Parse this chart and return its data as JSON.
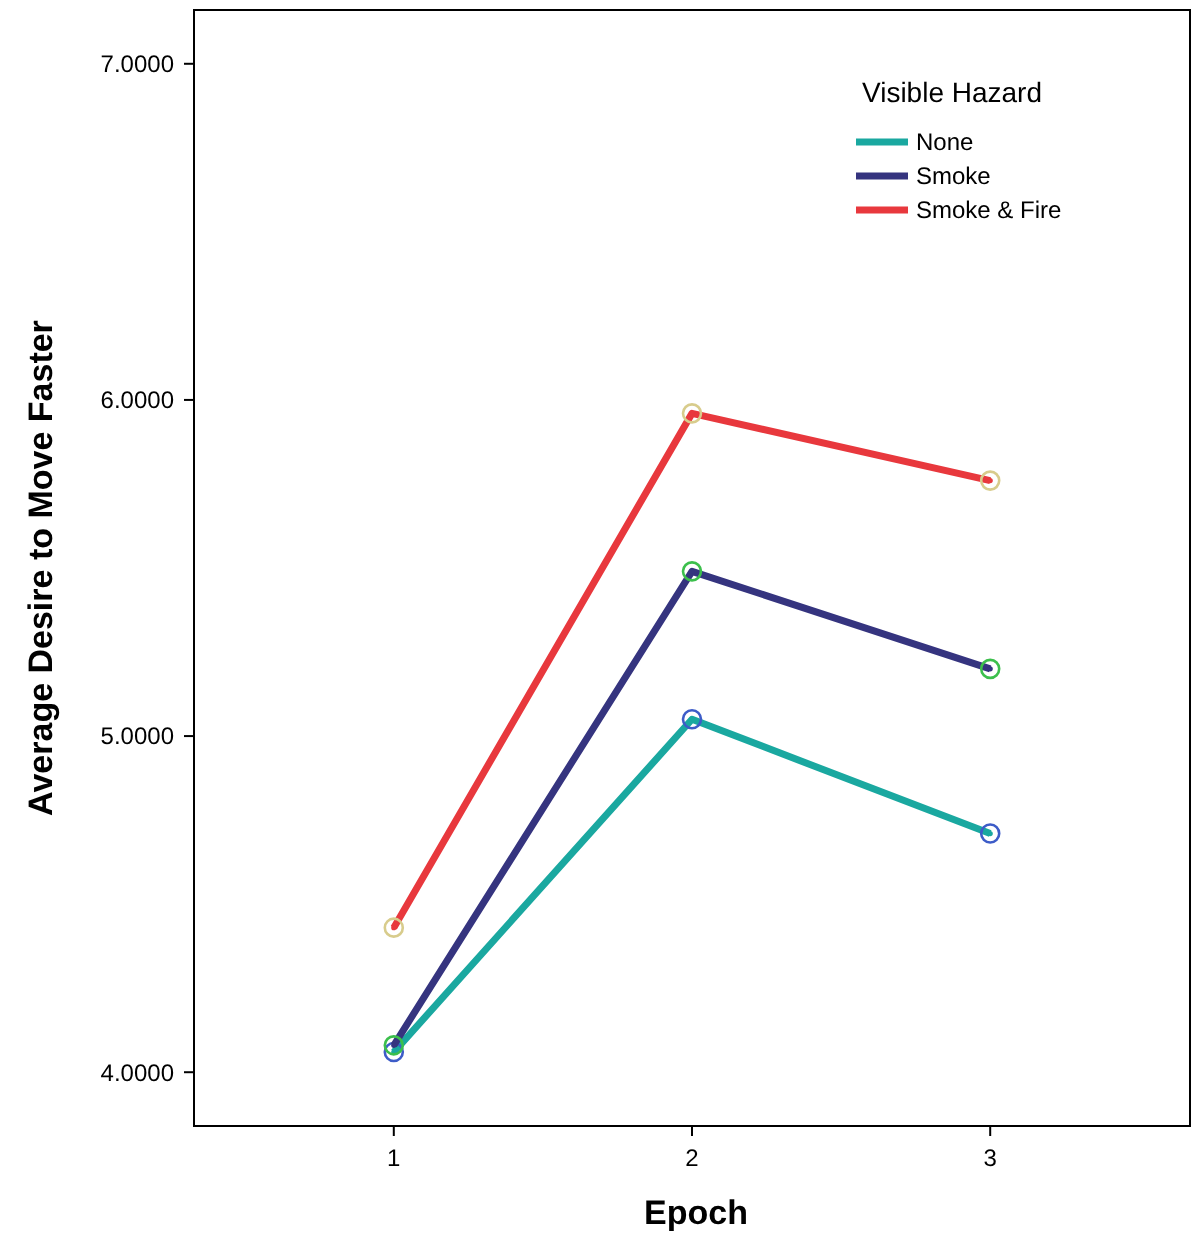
{
  "chart_data": {
    "type": "line",
    "xlabel": "Epoch",
    "ylabel": "Average Desire to Move Faster",
    "legend_title": "Visible Hazard",
    "legend": "top right",
    "marker": "circle",
    "line_style": "solid",
    "grid": false,
    "x": [
      1,
      2,
      3
    ],
    "xlim": [
      0.33,
      3.67
    ],
    "xticks": [
      1,
      2,
      3
    ],
    "ylim": [
      3.84,
      7.16
    ],
    "yticks": [
      {
        "value": 4,
        "label": "4.0000"
      },
      {
        "value": 5,
        "label": "5.0000"
      },
      {
        "value": 6,
        "label": "6.0000"
      },
      {
        "value": 7,
        "label": "7.0000"
      }
    ],
    "series": [
      {
        "name": "None",
        "color": "#1aa8a0",
        "colors": [
          "#3d5cc8",
          "#3d5cc8",
          "#3d5cc8"
        ],
        "values": [
          4.06,
          5.05,
          4.71
        ]
      },
      {
        "name": "Smoke",
        "color": "#35347f",
        "colors": [
          "#3cbf4c",
          "#3cbf4c",
          "#3cbf4c"
        ],
        "values": [
          4.08,
          5.49,
          5.2
        ]
      },
      {
        "name": "Smoke & Fire",
        "color": "#e8383d",
        "colors": [
          "#d8cc8c",
          "#d8cc8c",
          "#d8cc8c"
        ],
        "values": [
          4.43,
          5.96,
          5.76
        ]
      }
    ]
  }
}
